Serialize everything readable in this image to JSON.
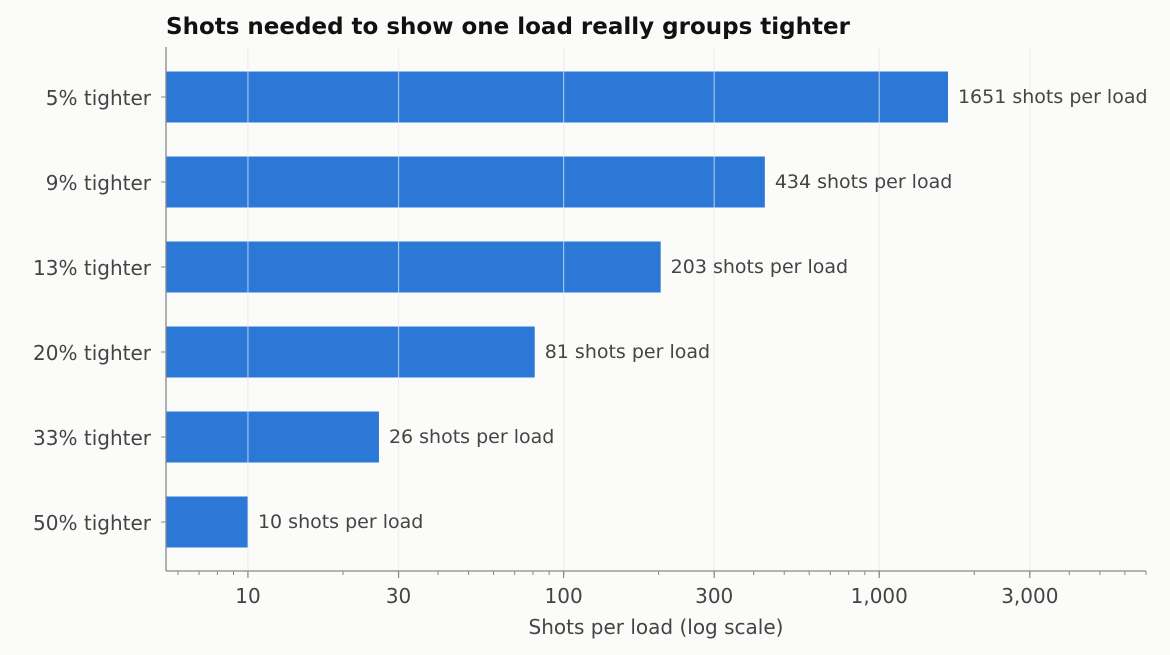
{
  "chart_data": {
    "type": "bar",
    "orientation": "horizontal",
    "title": "Shots needed to show one load really groups tighter",
    "xlabel": "Shots per load (log scale)",
    "ylabel": "",
    "xscale": "log",
    "xlim": [
      5.5,
      7000
    ],
    "xticks": [
      10,
      30,
      100,
      300,
      1000,
      3000
    ],
    "xtick_labels": [
      "10",
      "30",
      "100",
      "300",
      "1,000",
      "3,000"
    ],
    "grid": "vertical",
    "categories": [
      "5% tighter",
      "9% tighter",
      "13% tighter",
      "20% tighter",
      "33% tighter",
      "50% tighter"
    ],
    "values": [
      1651,
      434,
      203,
      81,
      26,
      10
    ],
    "value_labels": [
      "1651 shots per load",
      "434 shots per load",
      "203 shots per load",
      "81 shots per load",
      "26 shots per load",
      "10 shots per load"
    ],
    "bar_color": "#2b78d6",
    "background_color": "#fbfbfa",
    "grid_color": "#dddddd",
    "axis_color": "#888888",
    "text_color": "#444444"
  }
}
